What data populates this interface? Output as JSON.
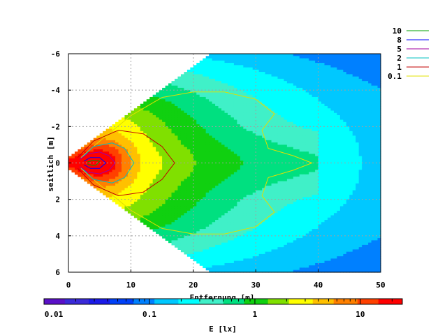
{
  "chart_data": {
    "type": "heatmap",
    "title": "",
    "xlabel": "Entfernung [m]",
    "ylabel": "seitlich [m]",
    "x_ticks": [
      "0",
      "10",
      "20",
      "30",
      "40",
      "50"
    ],
    "y_ticks": [
      "-6",
      "-4",
      "-2",
      "0",
      "2",
      "4",
      "6"
    ],
    "xlim": [
      0,
      50
    ],
    "ylim": [
      -6,
      6
    ],
    "grid": true,
    "colorbar": {
      "label": "E [lx]",
      "scale": "log",
      "range": [
        0.01,
        25
      ],
      "tick_labels": [
        "0.01",
        "0.1",
        "1",
        "10"
      ]
    },
    "contour_legend": {
      "position": "top-right",
      "entries": [
        {
          "label": "10",
          "color": "#00a000"
        },
        {
          "label": "8",
          "color": "#0000ff"
        },
        {
          "label": "5",
          "color": "#a000a0"
        },
        {
          "label": "2",
          "color": "#00c0c0"
        },
        {
          "label": "1",
          "color": "#c00000"
        },
        {
          "label": "0.1",
          "color": "#e0e000"
        }
      ]
    },
    "contours": [
      {
        "level": 0.1,
        "x": [
          2,
          5,
          10,
          15,
          20,
          25,
          30,
          33,
          31,
          32,
          36,
          39,
          36,
          32,
          31,
          33,
          30,
          25,
          20,
          15,
          10,
          5,
          2
        ],
        "y": [
          -0.3,
          -1.2,
          -2.6,
          -3.6,
          -3.9,
          -3.9,
          -3.5,
          -2.7,
          -1.8,
          -0.8,
          -0.4,
          0,
          0.4,
          0.8,
          1.8,
          2.7,
          3.5,
          3.9,
          3.9,
          3.6,
          2.6,
          1.2,
          0.3
        ]
      },
      {
        "level": 1,
        "x": [
          1.5,
          4,
          8,
          12,
          15,
          17,
          15,
          12,
          8,
          4,
          1.5
        ],
        "y": [
          -0.3,
          -1.2,
          -1.8,
          -1.6,
          -0.9,
          0,
          0.9,
          1.6,
          1.8,
          1.2,
          0.3
        ]
      },
      {
        "level": 2,
        "x": [
          2,
          4,
          7,
          9,
          10.5,
          9,
          7,
          4,
          2
        ],
        "y": [
          -0.25,
          -0.9,
          -1.1,
          -0.8,
          0,
          0.8,
          1.1,
          0.9,
          0.25
        ]
      },
      {
        "level": 5,
        "x": [
          1.8,
          3,
          5,
          6.5,
          7.5,
          6.5,
          5,
          3,
          1.8
        ],
        "y": [
          -0.2,
          -0.5,
          -0.6,
          -0.4,
          0,
          0.4,
          0.6,
          0.5,
          0.2
        ]
      },
      {
        "level": 8,
        "x": [
          2.5,
          3.5,
          5,
          6,
          5,
          3.5,
          2.5
        ],
        "y": [
          -0.1,
          -0.3,
          -0.3,
          0,
          0.3,
          0.3,
          0.1
        ]
      },
      {
        "level": 10,
        "x": [
          3,
          4,
          5,
          4.5,
          4,
          3
        ],
        "y": [
          -0.05,
          -0.15,
          -0.1,
          0.1,
          0.15,
          0.05
        ]
      }
    ],
    "colormap": [
      "#5a10c8",
      "#3a2ad8",
      "#1a1ae8",
      "#0040f8",
      "#0080ff",
      "#00c8ff",
      "#00ffff",
      "#40f0c8",
      "#00e080",
      "#10d010",
      "#80e000",
      "#ffff00",
      "#ffc000",
      "#ff8000",
      "#ff4000",
      "#ff0000"
    ]
  }
}
